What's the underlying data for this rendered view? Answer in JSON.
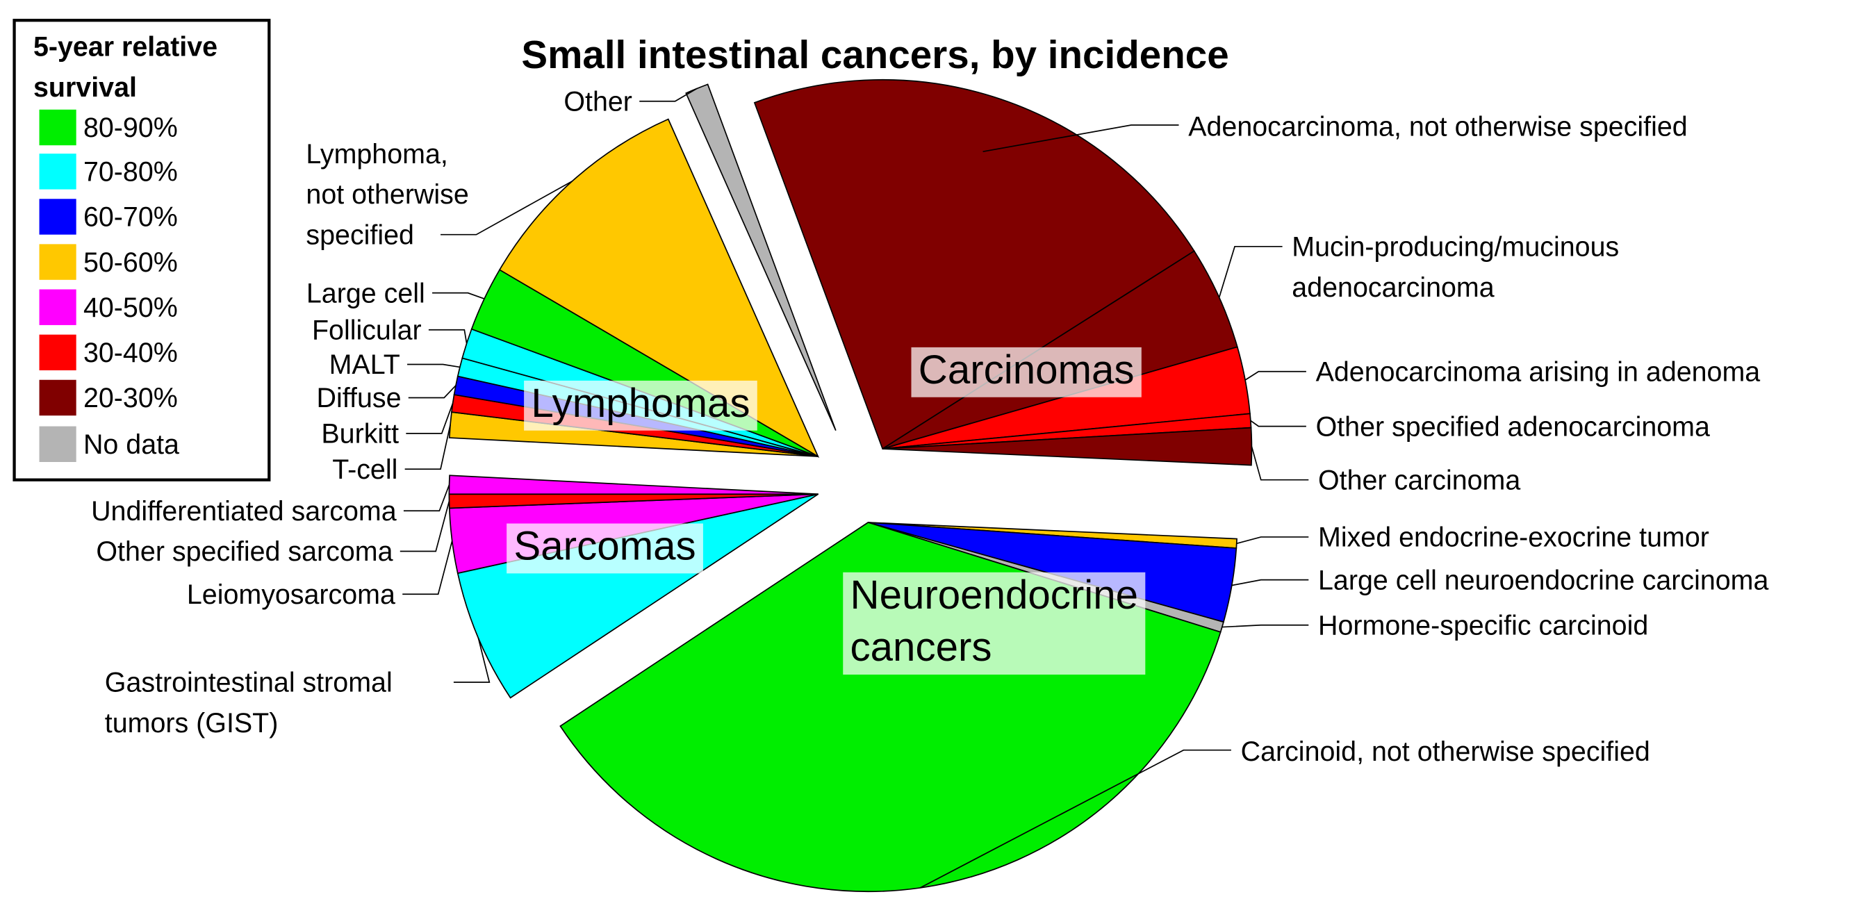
{
  "chart_data": {
    "type": "pie",
    "title": "Small intestinal cancers, by incidence",
    "legend": {
      "title": [
        "5-year relative",
        "survival"
      ],
      "items": [
        {
          "label": "80-90%",
          "color": "#00ee00"
        },
        {
          "label": "70-80%",
          "color": "#00ffff"
        },
        {
          "label": "60-70%",
          "color": "#0000ff"
        },
        {
          "label": "50-60%",
          "color": "#ffc800"
        },
        {
          "label": "40-50%",
          "color": "#ff00ff"
        },
        {
          "label": "30-40%",
          "color": "#ff0000"
        },
        {
          "label": "20-30%",
          "color": "#800000"
        },
        {
          "label": "No data",
          "color": "#b4b4b4"
        }
      ]
    },
    "groups": [
      {
        "name": [
          "Carcinomas"
        ],
        "slices": [
          {
            "label": [
              "Adenocarcinoma, not otherwise specified"
            ],
            "value": 21.4,
            "color": "#800000"
          },
          {
            "label": [
              "Mucin-producing/mucinous",
              "adenocarcinoma"
            ],
            "value": 4.5,
            "color": "#800000"
          },
          {
            "label": [
              "Adenocarcinoma arising in adenoma"
            ],
            "value": 2.9,
            "color": "#ff0000"
          },
          {
            "label": [
              "Other specified adenocarcinoma"
            ],
            "value": 0.6,
            "color": "#ff0000"
          },
          {
            "label": [
              "Other carcinoma"
            ],
            "value": 1.6,
            "color": "#800000"
          }
        ]
      },
      {
        "name": [
          "Neuroendocrine",
          "cancers"
        ],
        "slices": [
          {
            "label": [
              "Mixed endocrine-exocrine tumor"
            ],
            "value": 0.4,
            "color": "#ffc800"
          },
          {
            "label": [
              "Large cell neuroendocrine carcinoma"
            ],
            "value": 3.2,
            "color": "#0000ff"
          },
          {
            "label": [
              "Hormone-specific carcinoid"
            ],
            "value": 0.45,
            "color": "#b4b4b4"
          },
          {
            "label": [
              "Carcinoid, not otherwise specified"
            ],
            "value": 35.5,
            "color": "#00ee00"
          }
        ]
      },
      {
        "name": [
          "Sarcomas"
        ],
        "slices": [
          {
            "label": [
              "Gastrointestinal stromal",
              "tumors (GIST)"
            ],
            "value": 5.8,
            "color": "#00ffff"
          },
          {
            "label": [
              "Leiomyosarcoma"
            ],
            "value": 2.8,
            "color": "#ff00ff"
          },
          {
            "label": [
              "Other specified sarcoma"
            ],
            "value": 0.6,
            "color": "#ff0000"
          },
          {
            "label": [
              "Undifferentiated sarcoma"
            ],
            "value": 0.8,
            "color": "#ff00ff"
          }
        ]
      },
      {
        "name": [
          "Lymphomas"
        ],
        "slices": [
          {
            "label": [
              "T-cell"
            ],
            "value": 1.1,
            "color": "#ffc800"
          },
          {
            "label": [
              "Burkitt"
            ],
            "value": 0.75,
            "color": "#ff0000"
          },
          {
            "label": [
              "Diffuse"
            ],
            "value": 0.8,
            "color": "#0000ff"
          },
          {
            "label": [
              "MALT"
            ],
            "value": 0.8,
            "color": "#00ffff"
          },
          {
            "label": [
              "Follicular"
            ],
            "value": 1.3,
            "color": "#00ffff"
          },
          {
            "label": [
              "Large cell"
            ],
            "value": 2.8,
            "color": "#00ee00"
          },
          {
            "label": [
              "Lymphoma,",
              "not otherwise",
              "specified"
            ],
            "value": 9.8,
            "color": "#ffc800"
          }
        ]
      },
      {
        "name": [],
        "slices": [
          {
            "label": [
              "Other"
            ],
            "value": 1.0,
            "color": "#b4b4b4"
          }
        ]
      }
    ]
  }
}
